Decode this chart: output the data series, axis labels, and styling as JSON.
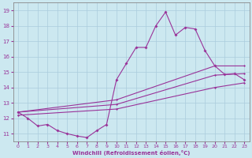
{
  "xlabel": "Windchill (Refroidissement éolien,°C)",
  "bg_color": "#cce8f0",
  "grid_color": "#aaccdd",
  "line_color": "#993399",
  "xlim": [
    -0.5,
    23.5
  ],
  "ylim": [
    10.5,
    19.5
  ],
  "xticks": [
    0,
    1,
    2,
    3,
    4,
    5,
    6,
    7,
    8,
    9,
    10,
    11,
    12,
    13,
    14,
    15,
    16,
    17,
    18,
    19,
    20,
    21,
    22,
    23
  ],
  "yticks": [
    11,
    12,
    13,
    14,
    15,
    16,
    17,
    18,
    19
  ],
  "series1_x": [
    0,
    1,
    2,
    3,
    4,
    5,
    6,
    7,
    8,
    9,
    10,
    11,
    12,
    13,
    14,
    15,
    16,
    17,
    18,
    19,
    20,
    21,
    22,
    23
  ],
  "series1_y": [
    12.4,
    12.0,
    11.5,
    11.6,
    11.2,
    11.0,
    10.85,
    10.75,
    11.2,
    11.6,
    14.5,
    15.55,
    16.6,
    16.6,
    18.0,
    18.9,
    17.4,
    17.9,
    17.8,
    16.4,
    15.4,
    14.85,
    14.9,
    14.5
  ],
  "series2_x": [
    0,
    10,
    20,
    23
  ],
  "series2_y": [
    12.4,
    13.2,
    15.4,
    15.4
  ],
  "series3_x": [
    0,
    10,
    20,
    23
  ],
  "series3_y": [
    12.4,
    12.9,
    14.8,
    14.9
  ],
  "series4_x": [
    0,
    10,
    20,
    23
  ],
  "series4_y": [
    12.2,
    12.6,
    14.0,
    14.3
  ]
}
